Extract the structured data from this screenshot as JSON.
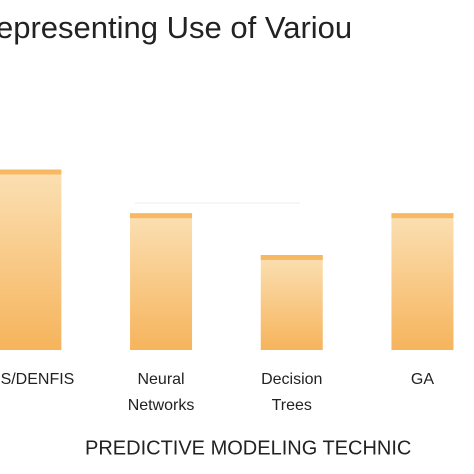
{
  "chart_data": {
    "type": "bar",
    "title": "epresenting Use of Variou",
    "x_label": "PREDICTIVE MODELING TECHNIC",
    "categories": [
      "FIS/DENFIS",
      "Neural Networks",
      "Decision Trees",
      "GA"
    ],
    "values": [
      95,
      72,
      50,
      72
    ],
    "color": "#f7b861",
    "ylim": [
      0,
      100
    ]
  }
}
